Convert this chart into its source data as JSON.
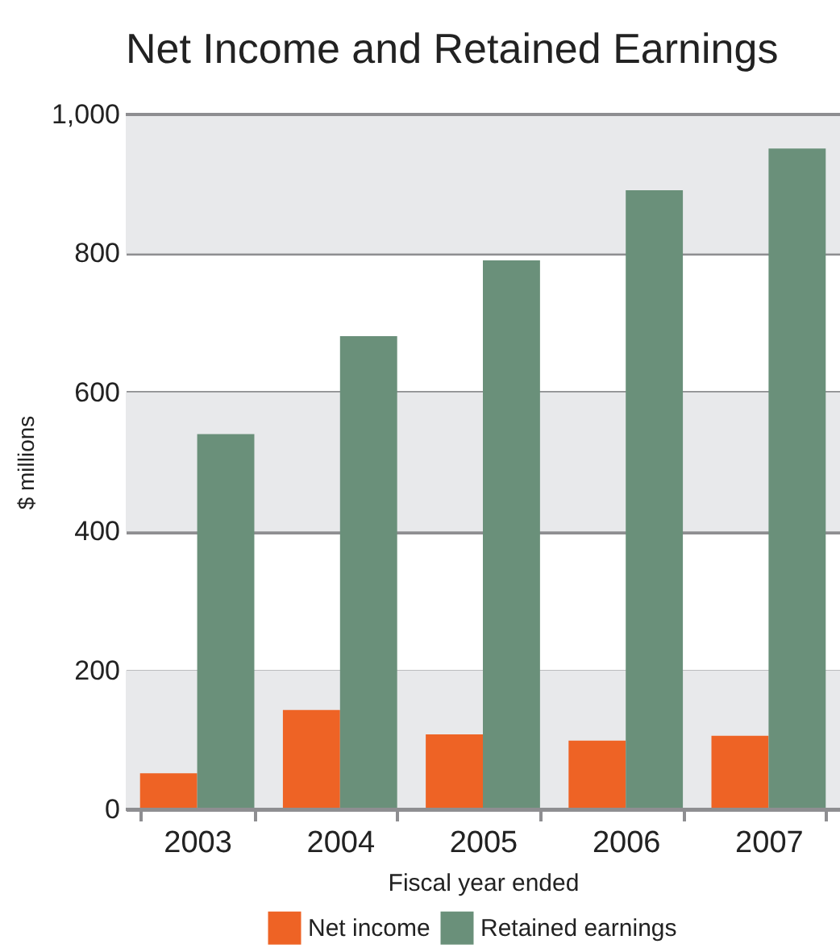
{
  "chart_data": {
    "type": "bar",
    "title": "Net Income and Retained Earnings",
    "xlabel": "Fiscal year ended",
    "ylabel": "$ millions",
    "categories": [
      "2003",
      "2004",
      "2005",
      "2006",
      "2007"
    ],
    "series": [
      {
        "name": "Net income",
        "color": "#ee6325",
        "values": [
          52,
          143,
          108,
          99,
          106
        ]
      },
      {
        "name": "Retained earnings",
        "color": "#6a907a",
        "values": [
          540,
          681,
          790,
          891,
          951
        ]
      }
    ],
    "ylim": [
      0,
      1000
    ],
    "yticks": [
      0,
      200,
      400,
      600,
      800,
      {
        "value": 1000,
        "label": "1,000"
      }
    ],
    "bands": [
      {
        "axis": "y",
        "from": 0,
        "to": 200,
        "color": "#e8e9eb"
      },
      {
        "axis": "y",
        "from": 400,
        "to": 600,
        "color": "#e8e9eb"
      },
      {
        "axis": "y",
        "from": 800,
        "to": 1000,
        "color": "#e8e9eb"
      }
    ],
    "grid": "y",
    "legend": "bottom"
  }
}
